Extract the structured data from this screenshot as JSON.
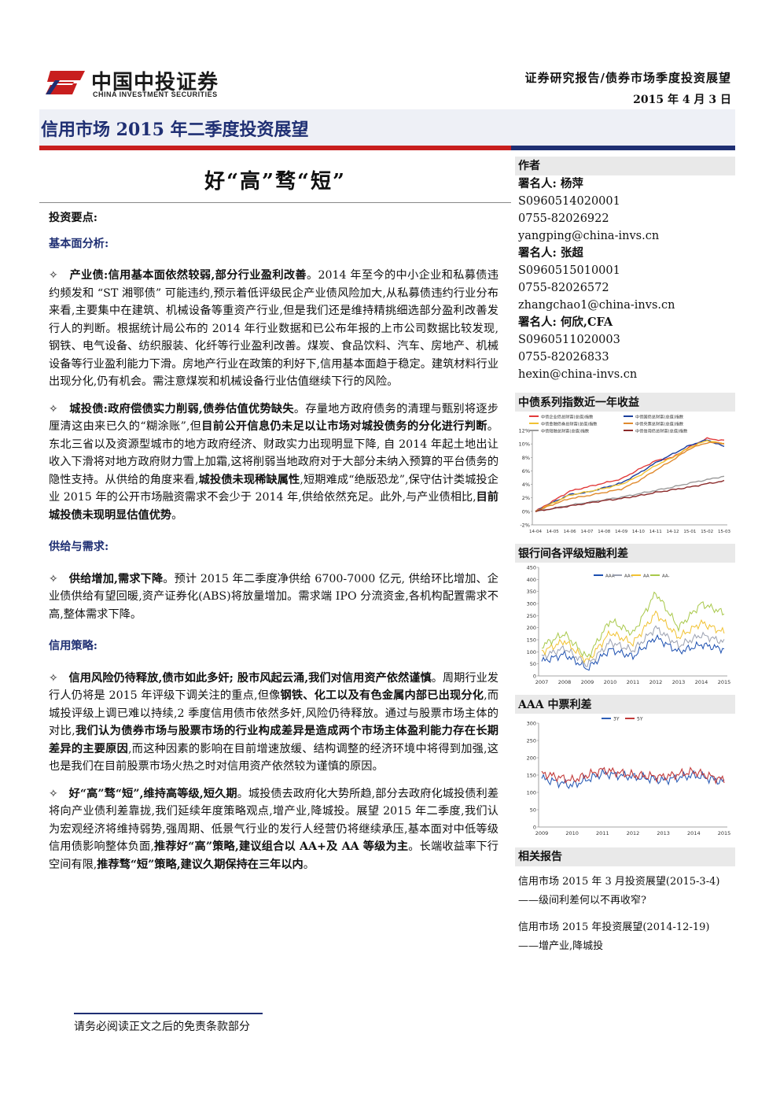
{
  "header": {
    "logo_cn": "中国中投证券",
    "logo_en": "CHINA INVESTMENT SECURITIES",
    "report_type": "证券研究报告/债券市场季度投资展望",
    "date": "2015 年 4 月 3 日",
    "title": "信用市场 2015 年二季度投资展望",
    "headline": "好“高”骛“短”"
  },
  "main": {
    "key_points_title": "投资要点:",
    "sec1_title": "基本面分析:",
    "p1_bullet": "✧",
    "p1_bold": "产业债:信用基本面依然较弱,部分行业盈利改善",
    "p1_text": "。2014 年至今的中小企业和私募债违约频发和 “ST 湘鄂债” 可能违约,预示着低评级民企产业债风险加大,从私募债违约行业分布来看,主要集中在建筑、机械设备等重资产行业,但是我们还是维持精挑细选部分盈利改善发行人的判断。根据统计局公布的 2014 年行业数据和已公布年报的上市公司数据比较发现,钢铁、电气设备、纺织服装、化纤等行业盈利改善。煤炭、食品饮料、汽车、房地产、机械设备等行业盈利能力下滑。房地产行业在政策的利好下,信用基本面趋于稳定。建筑材料行业出现分化,仍有机会。需注意煤炭和机械设备行业估值继续下行的风险。",
    "p2_bullet": "✧",
    "p2_bold1": "城投债:政府偿债实力削弱,债券估值优势缺失",
    "p2_text1": "。存量地方政府债务的清理与甄别将逐步厘清这由来已久的“糊涂账”,但",
    "p2_bold2": "目前公开信息仍未足以让市场对城投债务的分化进行判断",
    "p2_text2": "。东北三省以及资源型城市的地方政府经济、财政实力出现明显下降, 自 2014 年起土地出让收入下滑将对地方政府财力雪上加霜,这将削弱当地政府对于大部分未纳入预算的平台债务的隐性支持。从供给的角度来看,",
    "p2_bold3": "城投债未现稀缺属性",
    "p2_text3": ",短期难成“绝版恐龙”,保守估计类城投企业 2015 年的公开市场融资需求不会少于 2014 年,供给依然充足。此外,与产业债相比,",
    "p2_bold4": "目前城投债未现明显估值优势",
    "p2_text4": "。",
    "sec2_title": "供给与需求:",
    "p3_bullet": "✧",
    "p3_bold": "供给增加,需求下降",
    "p3_text": "。预计 2015 年二季度净供给 6700-7000 亿元, 供给环比增加、企业债供给有望回暖,资产证券化(ABS)将放量增加。需求端 IPO 分流资金,各机构配置需求不高,整体需求下降。",
    "sec3_title": "信用策略:",
    "p4_bullet": "✧",
    "p4_bold1": "信用风险仍待释放,债市如此多奸; 股市风起云涌,我们对信用资产依然谨慎",
    "p4_text1": "。周期行业发行人仍将是 2015 年评级下调关注的重点,但像",
    "p4_bold2": "钢铁、化工以及有色金属内部已出现分化",
    "p4_text2": ",而城投评级上调已难以持续,2 季度信用债市依然多奸,风险仍待释放。通过与股票市场主体的对比,",
    "p4_bold3": "我们认为债券市场与股票市场的行业构成差异是造成两个市场主体盈利能力存在长期差异的主要原因",
    "p4_text3": ",而这种因素的影响在目前增速放缓、结构调整的经济环境中将得到加强,这也是我们在目前股票市场火热之时对信用资产依然较为谨慎的原因。",
    "p5_bullet": "✧",
    "p5_bold1": "好“高”骛“短”,维持高等级,短久期",
    "p5_text1": "。城投债去政府化大势所趋,部分去政府化城投债利差将向产业债利差靠拢,我们延续年度策略观点,增产业,降城投。展望 2015 年二季度,我们认为宏观经济将维持弱势,强周期、低景气行业的发行人经营仍将继续承压,基本面对中低等级信用债影响整体负面,",
    "p5_bold2": "推荐好“高”策略,建议组合以 AA+及 AA 等级为主",
    "p5_text2": "。长端收益率下行空间有限,",
    "p5_bold3": "推荐骛“短”策略,建议久期保持在三年以内",
    "p5_text3": "。"
  },
  "sidebar": {
    "authors_head": "作者",
    "author1_name": "署名人: 杨萍",
    "author1_id": "S0960514020001",
    "author1_phone": "0755-82026922",
    "author1_email": "yangping@china-invs.cn",
    "author2_name": "署名人: 张超",
    "author2_id": "S0960515010001",
    "author2_phone": "0755-82026572",
    "author2_email": "zhangchao1@china-invs.cn",
    "author3_name": "署名人: 何欣,CFA",
    "author3_id": "S0960511020003",
    "author3_phone": "0755-82026833",
    "author3_email": "hexin@china-invs.cn",
    "related_head": "相关报告",
    "related1_title": "信用市场 2015 年 3 月投资展望(2015-3-4)",
    "related1_sub": "——级间利差何以不再收窄?",
    "related2_title": "信用市场 2015 年投资展望(2014-12-19)",
    "related2_sub": "——增产业,降城投"
  },
  "footer": {
    "disclaimer": "请务必阅读正文之后的免责条款部分"
  },
  "chart_data": [
    {
      "type": "line",
      "title": "中债系列指数近一年收益",
      "series": [
        {
          "name": "中债企业债总财富(总值)指数",
          "color": "#e23b3b"
        },
        {
          "name": "中债国债总财富(总值)指数",
          "color": "#1c3f9c"
        },
        {
          "name": "中债金融债券总财富(总值)指数",
          "color": "#f1c232"
        },
        {
          "name": "中债央票总财富(总值)指数",
          "color": "#e08a2e"
        },
        {
          "name": "中债短融总财富(总值)指数",
          "color": "#9a9a9a"
        },
        {
          "name": "中债信用债总财富(总值)指数",
          "color": "#8b2a2a"
        }
      ],
      "x": [
        "14-04",
        "14-05",
        "14-06",
        "14-07",
        "14-08",
        "14-09",
        "14-10",
        "14-11",
        "14-12",
        "15-01",
        "15-02",
        "15-03"
      ],
      "y_ticks": [
        "-2%",
        "0%",
        "2%",
        "4%",
        "6%",
        "8%",
        "10%",
        "12%"
      ],
      "ylim": [
        -2,
        12
      ],
      "values": {
        "中债企业债总财富(总值)指数": [
          0,
          1.5,
          3,
          3.6,
          4.2,
          4.8,
          6.2,
          7.5,
          8,
          9.6,
          10.8,
          10.5
        ],
        "中债国债总财富(总值)指数": [
          0,
          1.3,
          2.5,
          2.8,
          3.5,
          4.2,
          5.6,
          7.2,
          8.5,
          9.8,
          10.6,
          9.6
        ],
        "中债金融债券总财富(总值)指数": [
          0,
          1.2,
          2.4,
          2.9,
          3.4,
          4,
          5.2,
          6.8,
          8,
          9.5,
          10.5,
          10
        ],
        "中债央票总财富(总值)指数": [
          0,
          1,
          1.9,
          2.3,
          2.8,
          3.3,
          4.5,
          6.1,
          7.6,
          9.3,
          10.2,
          10.1
        ],
        "中债短融总财富(总值)指数": [
          0,
          0.4,
          0.9,
          1.3,
          1.7,
          2.1,
          2.6,
          3.1,
          3.6,
          4.2,
          4.7,
          5.2
        ],
        "中债信用债总财富(总值)指数": [
          0,
          0.4,
          0.8,
          1.2,
          1.6,
          1.9,
          2.3,
          2.8,
          3.2,
          3.6,
          4.1,
          4.5
        ]
      }
    },
    {
      "type": "line",
      "title": "银行间各评级短融利差",
      "series": [
        {
          "name": "AAA",
          "color": "#1c4fb0"
        },
        {
          "name": "AA+",
          "color": "#9aa0b0"
        },
        {
          "name": "AA",
          "color": "#f1c232"
        },
        {
          "name": "AA-",
          "color": "#a8c84a"
        }
      ],
      "x": [
        "2007",
        "2008",
        "2009",
        "2010",
        "2011",
        "2012",
        "2013",
        "2014",
        "2015"
      ],
      "y_ticks": [
        "0",
        "50",
        "100",
        "150",
        "200",
        "250",
        "300",
        "350",
        "400",
        "450"
      ],
      "ylim": [
        0,
        450
      ],
      "values": {
        "AAA": [
          60,
          90,
          30,
          110,
          80,
          160,
          100,
          130,
          110
        ],
        "AA+": [
          80,
          115,
          45,
          140,
          105,
          200,
          125,
          170,
          140
        ],
        "AA": [
          100,
          145,
          60,
          180,
          135,
          260,
          160,
          220,
          180
        ],
        "AA-": [
          125,
          175,
          75,
          230,
          175,
          345,
          200,
          300,
          260
        ]
      }
    },
    {
      "type": "line",
      "title": "AAA 中票利差",
      "series": [
        {
          "name": "3Y",
          "color": "#2e5fb7"
        },
        {
          "name": "5Y",
          "color": "#c23a3a"
        }
      ],
      "x": [
        "2009",
        "2010",
        "2011",
        "2012",
        "2013",
        "2014",
        "2015"
      ],
      "y_ticks": [
        "0",
        "50",
        "100",
        "150",
        "200",
        "250",
        "300"
      ],
      "ylim": [
        0,
        300
      ],
      "values": {
        "3Y": [
          140,
          120,
          155,
          145,
          135,
          150,
          130
        ],
        "5Y": [
          155,
          135,
          165,
          150,
          145,
          160,
          135
        ]
      }
    }
  ]
}
